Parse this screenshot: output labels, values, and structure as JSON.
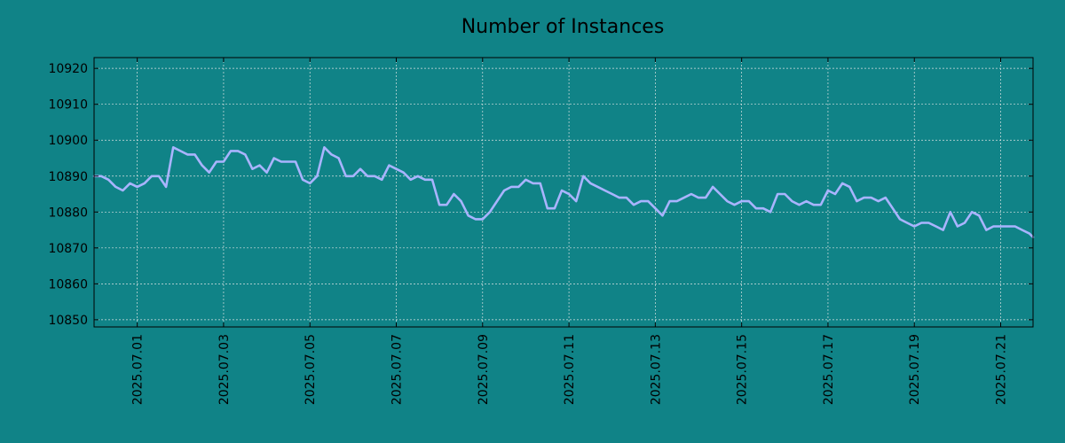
{
  "colors": {
    "background": "#108387",
    "line": "#a9b4ff",
    "grid": "#d8e2e2",
    "axis": "#000000"
  },
  "chart_data": {
    "type": "line",
    "title": "Number of Instances",
    "xlabel": "",
    "ylabel": "",
    "x_type": "date",
    "x_range": [
      "2025-06-30T00:00",
      "2025-07-21T18:00"
    ],
    "ylim": [
      10848,
      10923
    ],
    "grid": true,
    "legend": "none",
    "y_ticks": [
      10850,
      10860,
      10870,
      10880,
      10890,
      10900,
      10910,
      10920
    ],
    "y_tick_labels": [
      "10850",
      "10860",
      "10870",
      "10880",
      "10890",
      "10900",
      "10910",
      "10920"
    ],
    "x_ticks": [
      "2025-07-01",
      "2025-07-03",
      "2025-07-05",
      "2025-07-07",
      "2025-07-09",
      "2025-07-11",
      "2025-07-13",
      "2025-07-15",
      "2025-07-17",
      "2025-07-19",
      "2025-07-21"
    ],
    "x_tick_labels": [
      "2025.07.01",
      "2025.07.03",
      "2025.07.05",
      "2025.07.07",
      "2025.07.09",
      "2025.07.11",
      "2025.07.13",
      "2025.07.15",
      "2025.07.17",
      "2025.07.19",
      "2025.07.21"
    ],
    "series": [
      {
        "x": [
          "2025-06-30T00:00",
          "2025-06-30T04:00",
          "2025-06-30T08:00",
          "2025-06-30T12:00",
          "2025-06-30T16:00",
          "2025-06-30T20:00",
          "2025-07-01T00:00",
          "2025-07-01T04:00",
          "2025-07-01T08:00",
          "2025-07-01T12:00",
          "2025-07-01T16:00",
          "2025-07-01T20:00",
          "2025-07-02T00:00",
          "2025-07-02T04:00",
          "2025-07-02T08:00",
          "2025-07-02T12:00",
          "2025-07-02T16:00",
          "2025-07-02T20:00",
          "2025-07-03T00:00",
          "2025-07-03T04:00",
          "2025-07-03T08:00",
          "2025-07-03T12:00",
          "2025-07-03T16:00",
          "2025-07-03T20:00",
          "2025-07-04T00:00",
          "2025-07-04T04:00",
          "2025-07-04T08:00",
          "2025-07-04T12:00",
          "2025-07-04T16:00",
          "2025-07-04T20:00",
          "2025-07-05T00:00",
          "2025-07-05T04:00",
          "2025-07-05T08:00",
          "2025-07-05T12:00",
          "2025-07-05T16:00",
          "2025-07-05T20:00",
          "2025-07-06T00:00",
          "2025-07-06T04:00",
          "2025-07-06T08:00",
          "2025-07-06T12:00",
          "2025-07-06T16:00",
          "2025-07-06T20:00",
          "2025-07-07T00:00",
          "2025-07-07T04:00",
          "2025-07-07T08:00",
          "2025-07-07T12:00",
          "2025-07-07T16:00",
          "2025-07-07T20:00",
          "2025-07-08T00:00",
          "2025-07-08T04:00",
          "2025-07-08T08:00",
          "2025-07-08T12:00",
          "2025-07-08T16:00",
          "2025-07-08T20:00",
          "2025-07-09T00:00",
          "2025-07-09T04:00",
          "2025-07-09T08:00",
          "2025-07-09T12:00",
          "2025-07-09T16:00",
          "2025-07-09T20:00",
          "2025-07-10T00:00",
          "2025-07-10T04:00",
          "2025-07-10T08:00",
          "2025-07-10T12:00",
          "2025-07-10T16:00",
          "2025-07-10T20:00",
          "2025-07-11T00:00",
          "2025-07-11T04:00",
          "2025-07-11T08:00",
          "2025-07-11T12:00",
          "2025-07-11T16:00",
          "2025-07-11T20:00",
          "2025-07-12T00:00",
          "2025-07-12T04:00",
          "2025-07-12T08:00",
          "2025-07-12T12:00",
          "2025-07-12T16:00",
          "2025-07-12T20:00",
          "2025-07-13T00:00",
          "2025-07-13T04:00",
          "2025-07-13T08:00",
          "2025-07-13T12:00",
          "2025-07-13T16:00",
          "2025-07-13T20:00",
          "2025-07-14T00:00",
          "2025-07-14T04:00",
          "2025-07-14T08:00",
          "2025-07-14T12:00",
          "2025-07-14T16:00",
          "2025-07-14T20:00",
          "2025-07-15T00:00",
          "2025-07-15T04:00",
          "2025-07-15T08:00",
          "2025-07-15T12:00",
          "2025-07-15T16:00",
          "2025-07-15T20:00",
          "2025-07-16T00:00",
          "2025-07-16T04:00",
          "2025-07-16T08:00",
          "2025-07-16T12:00",
          "2025-07-16T16:00",
          "2025-07-16T20:00",
          "2025-07-17T00:00",
          "2025-07-17T04:00",
          "2025-07-17T08:00",
          "2025-07-17T12:00",
          "2025-07-17T16:00",
          "2025-07-17T20:00",
          "2025-07-18T00:00",
          "2025-07-18T04:00",
          "2025-07-18T08:00",
          "2025-07-18T12:00",
          "2025-07-18T16:00",
          "2025-07-18T20:00",
          "2025-07-19T00:00",
          "2025-07-19T04:00",
          "2025-07-19T08:00",
          "2025-07-19T12:00",
          "2025-07-19T16:00",
          "2025-07-19T20:00",
          "2025-07-20T00:00",
          "2025-07-20T04:00",
          "2025-07-20T08:00",
          "2025-07-20T12:00",
          "2025-07-20T16:00",
          "2025-07-20T20:00",
          "2025-07-21T00:00",
          "2025-07-21T04:00",
          "2025-07-21T08:00",
          "2025-07-21T12:00",
          "2025-07-21T16:00",
          "2025-07-21T18:00"
        ],
        "y": [
          10890,
          10890,
          10889,
          10887,
          10886,
          10888,
          10887,
          10888,
          10890,
          10890,
          10887,
          10898,
          10897,
          10896,
          10896,
          10893,
          10891,
          10894,
          10894,
          10897,
          10897,
          10896,
          10892,
          10893,
          10891,
          10895,
          10894,
          10894,
          10894,
          10889,
          10888,
          10890,
          10898,
          10896,
          10895,
          10890,
          10890,
          10892,
          10890,
          10890,
          10889,
          10893,
          10892,
          10891,
          10889,
          10890,
          10889,
          10889,
          10882,
          10882,
          10885,
          10883,
          10879,
          10878,
          10878,
          10880,
          10883,
          10886,
          10887,
          10887,
          10889,
          10888,
          10888,
          10881,
          10881,
          10886,
          10885,
          10883,
          10890,
          10888,
          10887,
          10886,
          10885,
          10884,
          10884,
          10882,
          10883,
          10883,
          10881,
          10879,
          10883,
          10883,
          10884,
          10885,
          10884,
          10884,
          10887,
          10885,
          10883,
          10882,
          10883,
          10883,
          10881,
          10881,
          10880,
          10885,
          10885,
          10883,
          10882,
          10883,
          10882,
          10882,
          10886,
          10885,
          10888,
          10887,
          10883,
          10884,
          10884,
          10883,
          10884,
          10881,
          10878,
          10877,
          10876,
          10877,
          10877,
          10876,
          10875,
          10880,
          10876,
          10877,
          10880,
          10879,
          10875,
          10876,
          10876,
          10876,
          10876,
          10875,
          10874,
          10873
        ]
      }
    ]
  }
}
